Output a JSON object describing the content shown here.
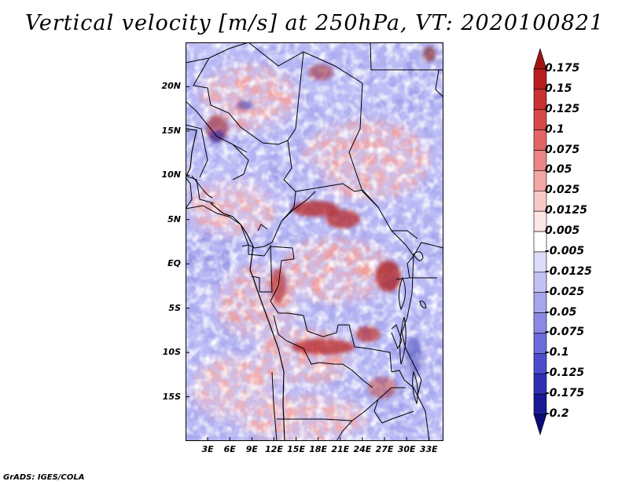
{
  "title": "Vertical velocity [m/s] at 250hPa, VT: 2020100821",
  "footer": "GrADS: IGES/COLA",
  "map": {
    "lat_labels": [
      "20N",
      "15N",
      "10N",
      "5N",
      "EQ",
      "5S",
      "10S",
      "15S"
    ],
    "lat_values": [
      20,
      15,
      10,
      5,
      0,
      -5,
      -10,
      -15
    ],
    "lon_labels": [
      "3E",
      "6E",
      "9E",
      "12E",
      "15E",
      "18E",
      "21E",
      "24E",
      "27E",
      "30E",
      "33E"
    ],
    "lon_values": [
      3,
      6,
      9,
      12,
      15,
      18,
      21,
      24,
      27,
      30,
      33
    ],
    "lat_range": [
      -20,
      25
    ],
    "lon_range": [
      0,
      35
    ]
  },
  "colorbar": {
    "labels": [
      "0.175",
      "0.15",
      "0.125",
      "0.1",
      "0.075",
      "0.05",
      "0.025",
      "0.0125",
      "0.005",
      "-0.005",
      "-0.0125",
      "-0.025",
      "-0.05",
      "-0.075",
      "-0.1",
      "-0.125",
      "-0.175",
      "-0.2"
    ],
    "colors": [
      "#a01414",
      "#b81e1e",
      "#c83232",
      "#d84848",
      "#e36464",
      "#ec8585",
      "#f3a6a6",
      "#f9c8c8",
      "#fde6e6",
      "#ffffff",
      "#dcdcfa",
      "#c2c2f4",
      "#a6a6ee",
      "#8a8ae6",
      "#6c6cdc",
      "#4d4dcc",
      "#3030b4",
      "#1a1a96",
      "#0a0a78"
    ]
  }
}
